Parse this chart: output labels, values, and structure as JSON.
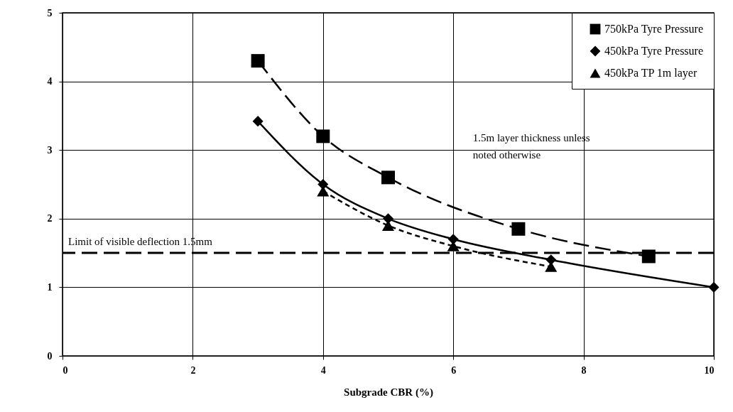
{
  "chart_data": {
    "type": "line",
    "xlabel": "Subgrade CBR (%)",
    "xlim": [
      0,
      10
    ],
    "xticks": [
      0,
      2,
      4,
      6,
      8,
      10
    ],
    "ylim": [
      0,
      5
    ],
    "yticks": [
      0,
      1,
      2,
      3,
      4,
      5
    ],
    "grid": true,
    "legend": "top right",
    "series": [
      {
        "name": "750kPa Tyre Pressure",
        "color": "#000000",
        "marker": "square",
        "line_style": "dashed",
        "x": [
          3,
          4,
          5,
          7,
          9
        ],
        "values": [
          4.3,
          3.2,
          2.6,
          1.85,
          1.45
        ]
      },
      {
        "name": "450kPa Tyre Pressure",
        "color": "#000000",
        "marker": "diamond",
        "line_style": "solid",
        "x": [
          3,
          4,
          5,
          6,
          7.5,
          10
        ],
        "values": [
          3.42,
          2.5,
          2.0,
          1.7,
          1.4,
          1.0
        ]
      },
      {
        "name": "450kPa TP  1m layer",
        "color": "#000000",
        "marker": "triangle",
        "line_style": "dotted",
        "x": [
          4,
          5,
          6,
          7.5
        ],
        "values": [
          2.4,
          1.9,
          1.6,
          1.3
        ]
      }
    ],
    "ref_lines": [
      {
        "axis": "y",
        "value": 1.5,
        "label": "Limit of visible deflection 1.5mm",
        "color": "#000000",
        "line_style": "dashed"
      }
    ],
    "annotations": [
      "1.5m layer thickness unless\nnoted otherwise"
    ]
  }
}
